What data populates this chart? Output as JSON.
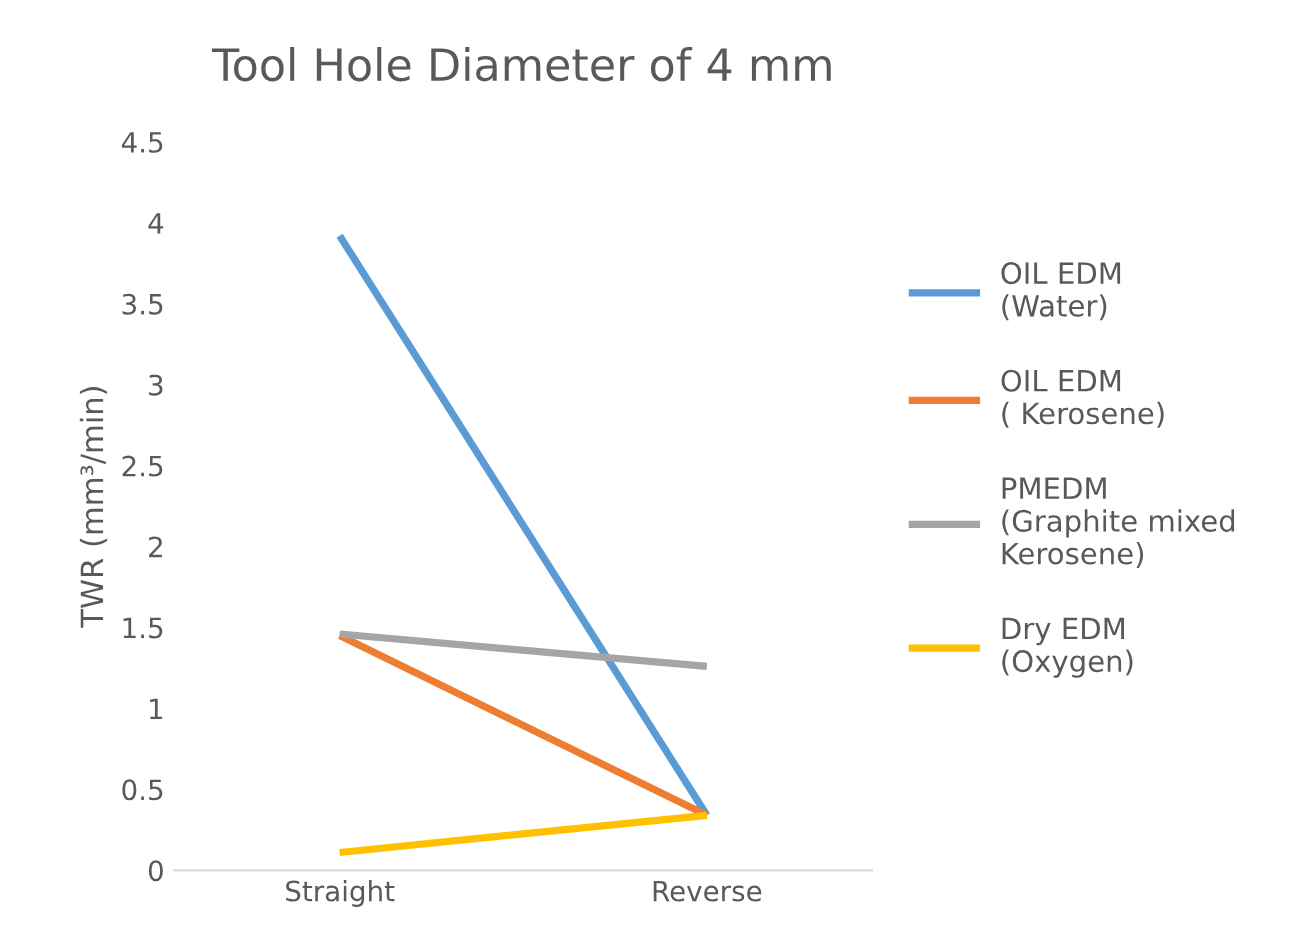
{
  "chart_data": {
    "type": "line",
    "title": "Tool Hole Diameter of 4 mm",
    "ylabel": "TWR (mm³/min)",
    "categories": [
      "Straight",
      "Reverse"
    ],
    "series": [
      {
        "name": "OIL EDM\n(Water)",
        "color": "#5b9bd5",
        "values": [
          3.92,
          0.34
        ]
      },
      {
        "name": "OIL EDM\n( Kerosene)",
        "color": "#ed7d31",
        "values": [
          1.45,
          0.34
        ]
      },
      {
        "name": "PMEDM\n(Graphite mixed\nKerosene)",
        "color": "#a5a5a5",
        "values": [
          1.46,
          1.26
        ]
      },
      {
        "name": "Dry EDM\n(Oxygen)",
        "color": "#ffc000",
        "values": [
          0.11,
          0.34
        ]
      }
    ],
    "ylim": [
      0,
      4.5
    ],
    "yticks": [
      0,
      0.5,
      1,
      1.5,
      2,
      2.5,
      3,
      3.5,
      4,
      4.5
    ],
    "grid": false,
    "legend": "right",
    "marker": "none",
    "line_style": "solid"
  }
}
